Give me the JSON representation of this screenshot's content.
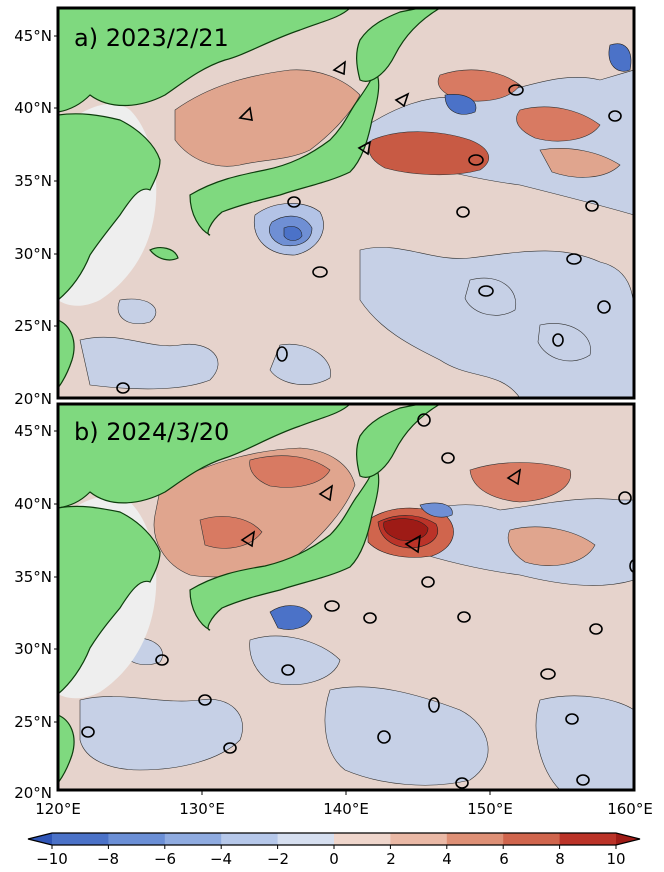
{
  "panels": [
    {
      "label": "a) 2023/2/21"
    },
    {
      "label": "b) 2024/3/20"
    }
  ],
  "y_ticks": [
    "45°N",
    "40°N",
    "35°N",
    "30°N",
    "25°N",
    "20°N"
  ],
  "x_ticks": [
    "120°E",
    "130°E",
    "140°E",
    "150°E",
    "160°E"
  ],
  "colorbar": {
    "ticks": [
      "−10",
      "−8",
      "−6",
      "−4",
      "−2",
      "0",
      "2",
      "4",
      "6",
      "8",
      "10"
    ],
    "range": [
      -10,
      10
    ],
    "extend": "both",
    "colors": [
      "#2f55b7",
      "#4b72c8",
      "#6b8fd6",
      "#8fabe0",
      "#b6c8ea",
      "#d6dff0",
      "#efd6cc",
      "#eab9a6",
      "#de9076",
      "#d0654d",
      "#bb3328",
      "#9e1b16"
    ]
  },
  "colors": {
    "land": "#7fd97f",
    "land_edge": "#0d3d0d",
    "sea_neutral": "#e6d3cc",
    "cool_patch": "#c6d0e6",
    "warm_patch": "#e0a58e",
    "masked": "#eeeeee"
  }
}
